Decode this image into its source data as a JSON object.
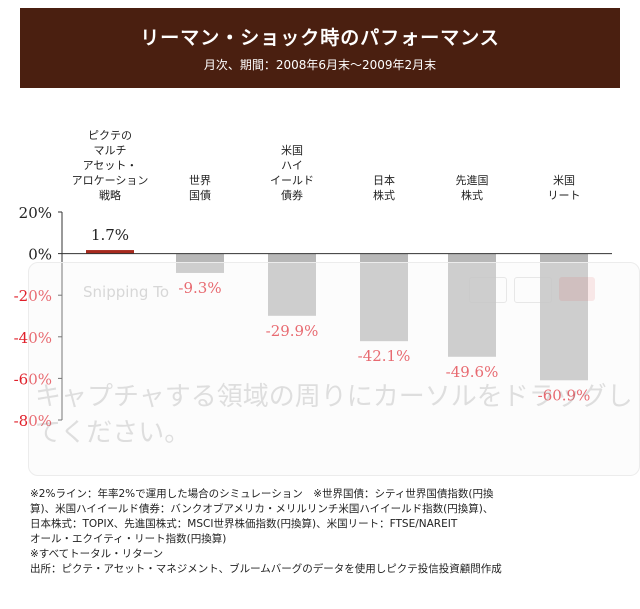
{
  "header": {
    "title": "リーマン・ショック時のパフォーマンス",
    "subtitle": "月次、期間：2008年6月末～2009年2月末"
  },
  "chart_data": {
    "type": "bar",
    "categories": [
      "ピクテの\nマルチ\nアセット・\nアロケーション\n戦略",
      "世界\n国債",
      "米国\nハイ\nイールド\n債券",
      "日本\n株式",
      "先進国\n株式",
      "米国\nリート"
    ],
    "values": [
      1.7,
      -9.3,
      -29.9,
      -42.1,
      -49.6,
      -60.9
    ],
    "value_labels": [
      "1.7%",
      "-9.3%",
      "-29.9%",
      "-42.1%",
      "-49.6%",
      "-60.9%"
    ],
    "ylim": [
      -80,
      20
    ],
    "yticks": [
      20,
      0,
      -20,
      -40,
      -60,
      -80
    ],
    "ytick_labels": [
      "20%",
      "0%",
      "-20%",
      "-40%",
      "-60%",
      "-80%"
    ],
    "grid": false,
    "colors": {
      "bar": "#b8b8b8",
      "highlight": "#a62a1e",
      "negative_label": "#e0202a",
      "positive_label": "#222222"
    }
  },
  "overlay": {
    "app_name": "Snipping To",
    "message": "キャプチャする領域の周りにカーソルをドラッグしてください。"
  },
  "notes": [
    "※2%ライン：年率2%で運用した場合のシミュレーション　※世界国債：シティ世界国債指数(円換",
    "算)、米国ハイイールド債券：バンクオブアメリカ・メリルリンチ米国ハイイールド指数(円換算)、",
    "日本株式：TOPIX、先進国株式：MSCI世界株価指数(円換算)、米国リート：FTSE/NAREIT",
    "オール・エクイティ・リート指数(円換算)",
    "※すべてトータル・リターン",
    "出所：ピクテ・アセット・マネジメント、ブルームバーグのデータを使用しピクテ投信投資顧問作成"
  ]
}
